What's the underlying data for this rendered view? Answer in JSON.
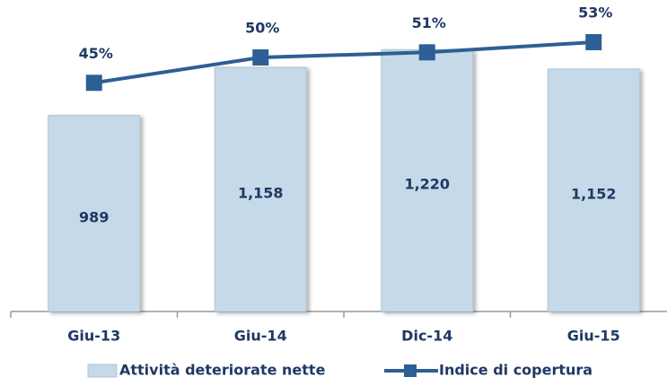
{
  "chart_data": {
    "type": "bar",
    "categories": [
      "Giu-13",
      "Giu-14",
      "Dic-14",
      "Giu-15"
    ],
    "series": [
      {
        "name": "Attività deteriorate nette",
        "type": "bar",
        "color": "#c6d9e8",
        "values": [
          989,
          1158,
          1220,
          1152
        ],
        "value_labels": [
          "989",
          "1,158",
          "1,220",
          "1,152"
        ]
      },
      {
        "name": "Indice di copertura",
        "type": "line",
        "axis": "y2",
        "color": "#2e5f94",
        "values": [
          45,
          50,
          51,
          53
        ],
        "value_labels": [
          "45%",
          "50%",
          "51%",
          "53%"
        ]
      }
    ],
    "ylim": [
      300,
      1300
    ],
    "y2lim": [
      0,
      56
    ],
    "legend": "bottom"
  }
}
